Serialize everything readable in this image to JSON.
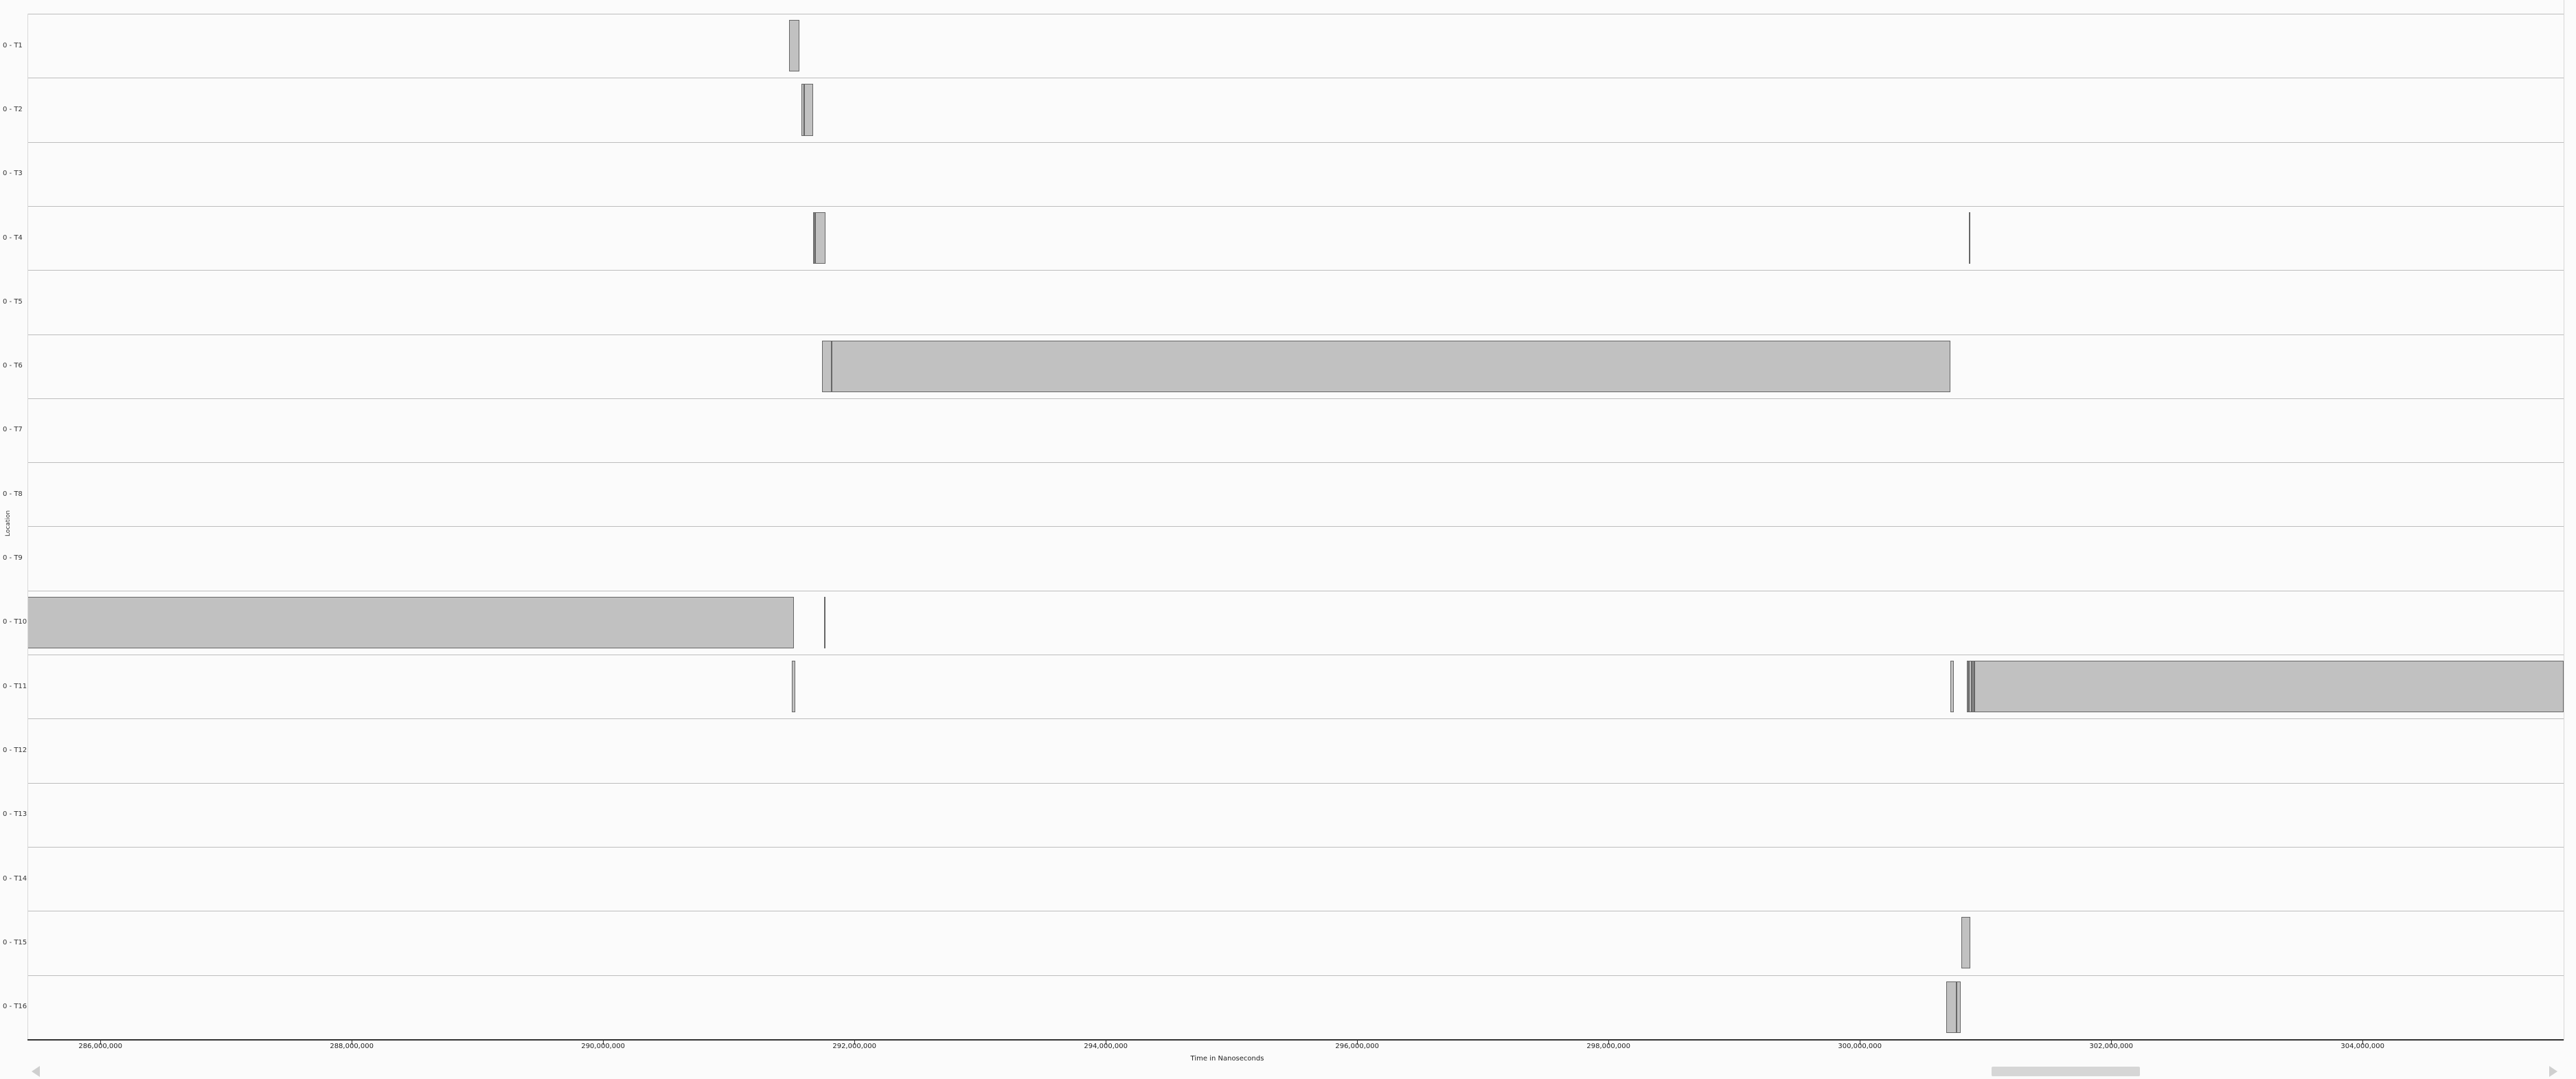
{
  "y_axis_title": "Location",
  "x_axis_title": "Time in Nanoseconds",
  "rows": [
    "0 - T1",
    "0 - T2",
    "0 - T3",
    "0 - T4",
    "0 - T5",
    "0 - T6",
    "0 - T7",
    "0 - T8",
    "0 - T9",
    "0 - T10",
    "0 - T11",
    "0 - T12",
    "0 - T13",
    "0 - T14",
    "0 - T15",
    "0 - T16"
  ],
  "x_ticks": [
    {
      "label": "286,000,000",
      "value": 286000000
    },
    {
      "label": "288,000,000",
      "value": 288000000
    },
    {
      "label": "290,000,000",
      "value": 290000000
    },
    {
      "label": "292,000,000",
      "value": 292000000
    },
    {
      "label": "294,000,000",
      "value": 294000000
    },
    {
      "label": "296,000,000",
      "value": 296000000
    },
    {
      "label": "298,000,000",
      "value": 298000000
    },
    {
      "label": "300,000,000",
      "value": 300000000
    },
    {
      "label": "302,000,000",
      "value": 302000000
    },
    {
      "label": "304,000,000",
      "value": 304000000
    }
  ],
  "x_range": [
    285420000,
    305600000
  ],
  "events": [
    {
      "row": 0,
      "start": 291480000,
      "end": 291560000
    },
    {
      "row": 1,
      "start": 291580000,
      "end": 291600000
    },
    {
      "row": 1,
      "start": 291600000,
      "end": 291670000
    },
    {
      "row": 3,
      "start": 291670000,
      "end": 291690000,
      "dark": true
    },
    {
      "row": 3,
      "start": 291690000,
      "end": 291770000
    },
    {
      "row": 3,
      "start": 300870000,
      "end": 300880000,
      "dark": true
    },
    {
      "row": 5,
      "start": 291740000,
      "end": 291820000
    },
    {
      "row": 5,
      "start": 291820000,
      "end": 300720000
    },
    {
      "row": 9,
      "start": 285420000,
      "end": 291520000
    },
    {
      "row": 9,
      "start": 291760000,
      "end": 291770000,
      "dark": true
    },
    {
      "row": 10,
      "start": 291500000,
      "end": 291530000
    },
    {
      "row": 10,
      "start": 300720000,
      "end": 300750000
    },
    {
      "row": 10,
      "start": 300850000,
      "end": 300870000,
      "dark": true
    },
    {
      "row": 10,
      "start": 300870000,
      "end": 300890000
    },
    {
      "row": 10,
      "start": 300890000,
      "end": 300910000,
      "dark": true
    },
    {
      "row": 10,
      "start": 300910000,
      "end": 305600000
    },
    {
      "row": 14,
      "start": 300810000,
      "end": 300880000
    },
    {
      "row": 15,
      "start": 300690000,
      "end": 300770000
    },
    {
      "row": 15,
      "start": 300770000,
      "end": 300800000
    }
  ],
  "scroll": {
    "position": 0.7745,
    "size": 0.0585
  }
}
